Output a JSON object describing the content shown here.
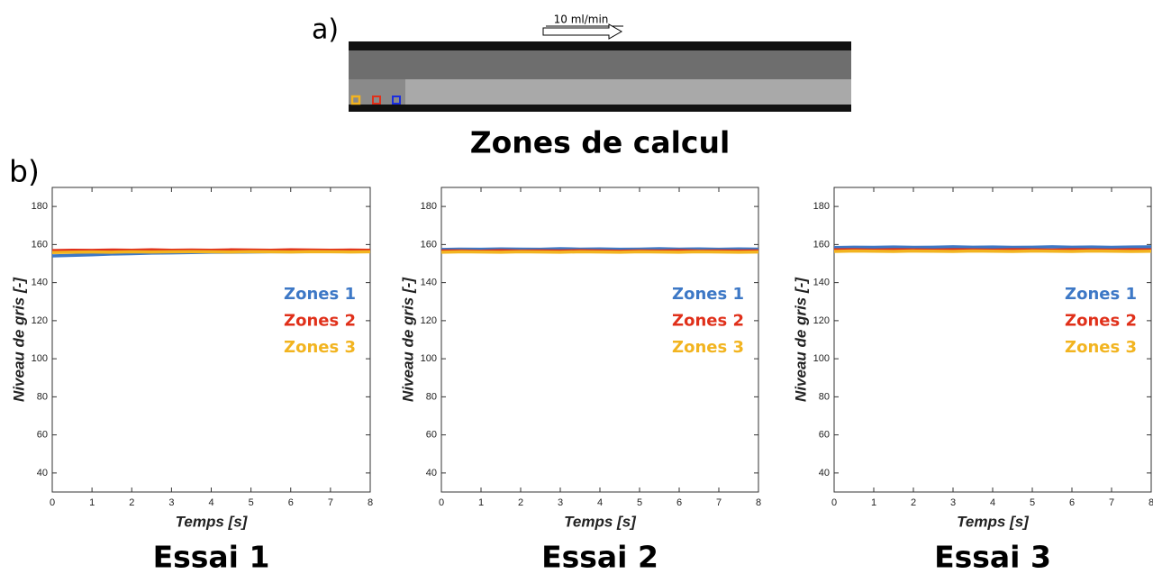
{
  "figure": {
    "panel_a": "a)",
    "flow_label": "10 ml/min",
    "image_title": "Zones de calcul",
    "panel_b": "b)"
  },
  "chart_data": [
    {
      "type": "line",
      "title": "Essai 1",
      "x_label": "Temps [s]",
      "y_label": "Niveau de gris [-]",
      "x": [
        0,
        0.5,
        1,
        1.5,
        2,
        2.5,
        3,
        3.5,
        4,
        4.5,
        5,
        5.5,
        6,
        6.5,
        7,
        7.5,
        8
      ],
      "xlim": [
        0,
        8
      ],
      "xticks": [
        0,
        1,
        2,
        3,
        4,
        5,
        6,
        7,
        8
      ],
      "ylim": [
        30,
        190
      ],
      "yticks": [
        40,
        60,
        80,
        100,
        120,
        140,
        160,
        180
      ],
      "series": [
        {
          "name": "Zones 1",
          "color": "#3d78c6",
          "values": [
            154,
            154.3,
            154.6,
            155,
            155.2,
            155.5,
            155.6,
            155.8,
            156,
            156,
            156.1,
            156.2,
            156.2,
            156.3,
            156.3,
            156.4,
            156.4
          ]
        },
        {
          "name": "Zones 2",
          "color": "#e0301a",
          "values": [
            156.8,
            157,
            156.9,
            157.1,
            157,
            157.2,
            157,
            157.1,
            157,
            157.2,
            157.1,
            157,
            157.2,
            157.1,
            157,
            157.1,
            157
          ]
        },
        {
          "name": "Zones 3",
          "color": "#f2b420",
          "values": [
            155.8,
            156,
            156.1,
            156,
            156.2,
            156.1,
            156.2,
            156.3,
            156.2,
            156.1,
            156.3,
            156.2,
            156.1,
            156.3,
            156.2,
            156.1,
            156.2
          ]
        }
      ]
    },
    {
      "type": "line",
      "title": "Essai 2",
      "x_label": "Temps [s]",
      "y_label": "Niveau de gris [-]",
      "x": [
        0,
        0.5,
        1,
        1.5,
        2,
        2.5,
        3,
        3.5,
        4,
        4.5,
        5,
        5.5,
        6,
        6.5,
        7,
        7.5,
        8
      ],
      "xlim": [
        0,
        8
      ],
      "xticks": [
        0,
        1,
        2,
        3,
        4,
        5,
        6,
        7,
        8
      ],
      "ylim": [
        30,
        190
      ],
      "yticks": [
        40,
        60,
        80,
        100,
        120,
        140,
        160,
        180
      ],
      "series": [
        {
          "name": "Zones 1",
          "color": "#3d78c6",
          "values": [
            157.4,
            157.6,
            157.5,
            157.7,
            157.6,
            157.5,
            157.8,
            157.6,
            157.7,
            157.5,
            157.6,
            157.8,
            157.6,
            157.7,
            157.5,
            157.7,
            157.6
          ]
        },
        {
          "name": "Zones 2",
          "color": "#e0301a",
          "values": [
            156.6,
            156.7,
            156.5,
            156.8,
            156.6,
            156.7,
            156.6,
            156.8,
            156.7,
            156.5,
            156.7,
            156.6,
            156.8,
            156.6,
            156.7,
            156.6,
            156.7
          ]
        },
        {
          "name": "Zones 3",
          "color": "#f2b420",
          "values": [
            156,
            156.2,
            156.1,
            156,
            156.2,
            156.1,
            156,
            156.2,
            156.1,
            156,
            156.2,
            156.1,
            156,
            156.2,
            156.1,
            156,
            156.1
          ]
        }
      ]
    },
    {
      "type": "line",
      "title": "Essai 3",
      "x_label": "Temps [s]",
      "y_label": "Niveau de gris [-]",
      "x": [
        0,
        0.5,
        1,
        1.5,
        2,
        2.5,
        3,
        3.5,
        4,
        4.5,
        5,
        5.5,
        6,
        6.5,
        7,
        7.5,
        8
      ],
      "xlim": [
        0,
        8
      ],
      "xticks": [
        0,
        1,
        2,
        3,
        4,
        5,
        6,
        7,
        8
      ],
      "ylim": [
        30,
        190
      ],
      "yticks": [
        40,
        60,
        80,
        100,
        120,
        140,
        160,
        180
      ],
      "series": [
        {
          "name": "Zones 1",
          "color": "#3d78c6",
          "values": [
            158.4,
            158.6,
            158.5,
            158.7,
            158.5,
            158.6,
            158.8,
            158.6,
            158.7,
            158.5,
            158.6,
            158.8,
            158.6,
            158.7,
            158.5,
            158.7,
            158.8
          ]
        },
        {
          "name": "Zones 2",
          "color": "#e0301a",
          "values": [
            157.2,
            157.3,
            157.1,
            157.3,
            157.2,
            157.1,
            157.3,
            157.2,
            157.1,
            157.3,
            157.2,
            157.1,
            157.3,
            157.2,
            157.1,
            157.3,
            157.2
          ]
        },
        {
          "name": "Zones 3",
          "color": "#f2b420",
          "values": [
            156.4,
            156.6,
            156.5,
            156.4,
            156.6,
            156.5,
            156.4,
            156.6,
            156.5,
            156.4,
            156.6,
            156.5,
            156.4,
            156.6,
            156.5,
            156.4,
            156.5
          ]
        }
      ]
    }
  ]
}
